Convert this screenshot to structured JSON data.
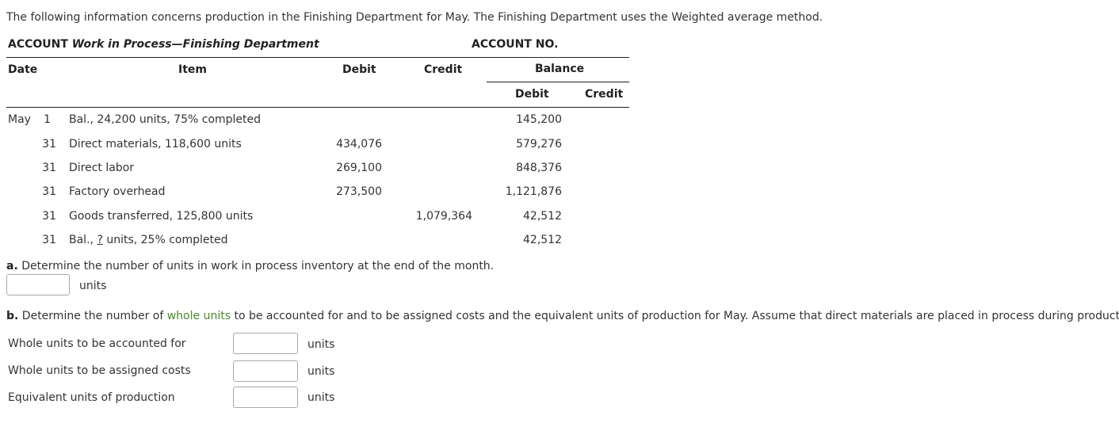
{
  "intro": "The following information concerns production in the Finishing Department for May. The Finishing Department uses the Weighted average method.",
  "account": {
    "label": "ACCOUNT",
    "name": "Work in Process—Finishing Department",
    "no_label": "ACCOUNT NO."
  },
  "headers": {
    "date": "Date",
    "item": "Item",
    "debit": "Debit",
    "credit": "Credit",
    "balance": "Balance",
    "bal_debit": "Debit",
    "bal_credit": "Credit"
  },
  "rows": [
    {
      "month": "May",
      "day": "1",
      "item": "Bal., 24,200 units, 75% completed",
      "debit": "",
      "credit": "",
      "bal_debit": "145,200"
    },
    {
      "month": "",
      "day": "31",
      "item": "Direct materials, 118,600 units",
      "debit": "434,076",
      "credit": "",
      "bal_debit": "579,276"
    },
    {
      "month": "",
      "day": "31",
      "item": "Direct labor",
      "debit": "269,100",
      "credit": "",
      "bal_debit": "848,376"
    },
    {
      "month": "",
      "day": "31",
      "item": "Factory overhead",
      "debit": "273,500",
      "credit": "",
      "bal_debit": "1,121,876"
    },
    {
      "month": "",
      "day": "31",
      "item": "Goods transferred, 125,800 units",
      "debit": "",
      "credit": "1,079,364",
      "bal_debit": "42,512"
    },
    {
      "month": "",
      "day": "31",
      "item_pre": "Bal., ",
      "item_q": "?",
      "item_post": " units, 25% completed",
      "debit": "",
      "credit": "",
      "bal_debit": "42,512"
    }
  ],
  "part_a": {
    "label": "a.",
    "text": "Determine the number of units in work in process inventory at the end of the month.",
    "unit": "units",
    "value": ""
  },
  "part_b": {
    "label": "b.",
    "text_pre": "Determine the number of ",
    "link": "whole units",
    "text_post": " to be accounted for and to be assigned costs and the equivalent units of production for May. Assume that direct materials are placed in process during production.",
    "fields": [
      {
        "label": "Whole units to be accounted for",
        "unit": "units",
        "value": ""
      },
      {
        "label": "Whole units to be assigned costs",
        "unit": "units",
        "value": ""
      },
      {
        "label": "Equivalent units of production",
        "unit": "units",
        "value": ""
      }
    ]
  }
}
